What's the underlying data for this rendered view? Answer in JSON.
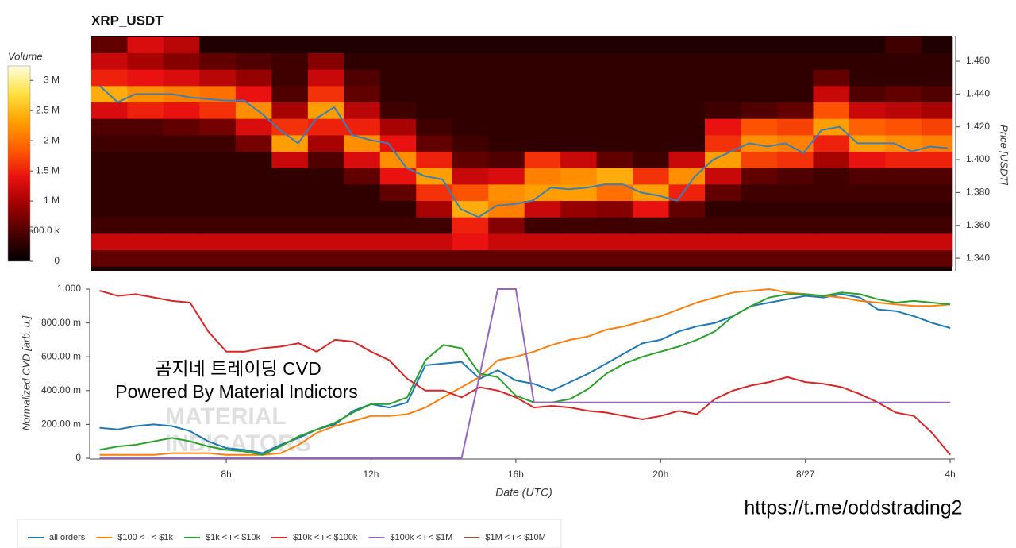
{
  "chart_data": [
    {
      "type": "heatmap",
      "title": "XRP_USDT",
      "y_label": "Price [USDT]",
      "colorbar_label": "Volume",
      "xlim": [
        4.27,
        28.13
      ],
      "ylim": [
        1.3323,
        1.4755
      ],
      "yticks": [
        {
          "value": 1.34,
          "label": "1.340"
        },
        {
          "value": 1.36,
          "label": "1.360"
        },
        {
          "value": 1.38,
          "label": "1.380"
        },
        {
          "value": 1.4,
          "label": "1.400"
        },
        {
          "value": 1.42,
          "label": "1.420"
        },
        {
          "value": 1.44,
          "label": "1.440"
        },
        {
          "value": 1.46,
          "label": "1.460"
        }
      ],
      "x_bins": [
        4.27,
        5.27,
        6.27,
        7.27,
        8.27,
        9.27,
        10.27,
        11.27,
        12.27,
        13.27,
        14.27,
        15.27,
        16.27,
        17.27,
        18.27,
        19.27,
        20.27,
        21.27,
        22.27,
        23.27,
        24.27,
        25.27,
        26.27,
        27.27,
        28.13
      ],
      "y_bins": [
        1.335,
        1.345,
        1.355,
        1.365,
        1.375,
        1.385,
        1.395,
        1.405,
        1.415,
        1.425,
        1.435,
        1.445,
        1.455,
        1.465,
        1.475
      ],
      "z": [
        [
          600000.0,
          600000.0,
          600000.0,
          600000.0,
          600000.0,
          600000.0,
          600000.0,
          600000.0,
          600000.0,
          600000.0,
          600000.0,
          600000.0,
          600000.0,
          600000.0,
          600000.0,
          600000.0,
          600000.0,
          600000.0,
          600000.0,
          600000.0,
          600000.0,
          600000.0,
          600000.0,
          600000.0
        ],
        [
          1200000.0,
          1200000.0,
          1200000.0,
          1200000.0,
          1200000.0,
          1200000.0,
          1200000.0,
          1200000.0,
          1200000.0,
          1200000.0,
          1400000.0,
          1200000.0,
          1200000.0,
          1200000.0,
          1200000.0,
          1200000.0,
          1200000.0,
          1200000.0,
          1200000.0,
          1200000.0,
          1200000.0,
          1200000.0,
          1200000.0,
          1200000.0
        ],
        [
          400000.0,
          400000.0,
          400000.0,
          400000.0,
          400000.0,
          400000.0,
          400000.0,
          400000.0,
          400000.0,
          400000.0,
          1500000.0,
          800000.0,
          400000.0,
          400000.0,
          400000.0,
          400000.0,
          400000.0,
          400000.0,
          400000.0,
          400000.0,
          400000.0,
          400000.0,
          400000.0,
          400000.0
        ],
        [
          300000.0,
          300000.0,
          300000.0,
          300000.0,
          300000.0,
          300000.0,
          300000.0,
          300000.0,
          300000.0,
          1000000.0,
          2400000.0,
          2100000.0,
          1200000.0,
          900000.0,
          800000.0,
          1400000.0,
          600000.0,
          300000.0,
          300000.0,
          300000.0,
          300000.0,
          300000.0,
          300000.0,
          300000.0
        ],
        [
          300000.0,
          300000.0,
          300000.0,
          300000.0,
          300000.0,
          300000.0,
          300000.0,
          300000.0,
          600000.0,
          1600000.0,
          1800000.0,
          2200000.0,
          2300000.0,
          2300000.0,
          2000000.0,
          2300000.0,
          1500000.0,
          600000.0,
          400000.0,
          400000.0,
          400000.0,
          400000.0,
          400000.0,
          400000.0
        ],
        [
          300000.0,
          300000.0,
          300000.0,
          300000.0,
          300000.0,
          300000.0,
          300000.0,
          600000.0,
          1400000.0,
          2300000.0,
          1200000.0,
          1300000.0,
          2100000.0,
          2200000.0,
          2400000.0,
          1600000.0,
          2200000.0,
          1200000.0,
          600000.0,
          500000.0,
          400000.0,
          500000.0,
          500000.0,
          500000.0
        ],
        [
          300000.0,
          300000.0,
          300000.0,
          300000.0,
          300000.0,
          1200000.0,
          500000.0,
          1300000.0,
          2200000.0,
          1500000.0,
          600000.0,
          500000.0,
          1600000.0,
          1200000.0,
          600000.0,
          400000.0,
          1200000.0,
          2300000.0,
          1700000.0,
          1600000.0,
          1000000.0,
          1400000.0,
          1500000.0,
          1500000.0
        ],
        [
          400000.0,
          400000.0,
          400000.0,
          400000.0,
          700000.0,
          2300000.0,
          1000000.0,
          2200000.0,
          1400000.0,
          600000.0,
          400000.0,
          300000.0,
          300000.0,
          300000.0,
          300000.0,
          300000.0,
          300000.0,
          1600000.0,
          2200000.0,
          2100000.0,
          1500000.0,
          2300000.0,
          2200000.0,
          2100000.0
        ],
        [
          500000.0,
          500000.0,
          600000.0,
          700000.0,
          1300000.0,
          1600000.0,
          1500000.0,
          1500000.0,
          1000000.0,
          400000.0,
          300000.0,
          300000.0,
          300000.0,
          300000.0,
          300000.0,
          300000.0,
          300000.0,
          1400000.0,
          1800000.0,
          1700000.0,
          2300000.0,
          1900000.0,
          1800000.0,
          1700000.0
        ],
        [
          1300000.0,
          1500000.0,
          1400000.0,
          1600000.0,
          2200000.0,
          1000000.0,
          2300000.0,
          1100000.0,
          400000.0,
          300000.0,
          300000.0,
          300000.0,
          300000.0,
          300000.0,
          300000.0,
          300000.0,
          300000.0,
          400000.0,
          500000.0,
          600000.0,
          1800000.0,
          1200000.0,
          1100000.0,
          1000000.0
        ],
        [
          2400000.0,
          2200000.0,
          2100000.0,
          2000000.0,
          1400000.0,
          500000.0,
          1600000.0,
          600000.0,
          300000.0,
          300000.0,
          300000.0,
          300000.0,
          300000.0,
          300000.0,
          300000.0,
          300000.0,
          300000.0,
          300000.0,
          300000.0,
          300000.0,
          1200000.0,
          500000.0,
          600000.0,
          500000.0
        ],
        [
          1500000.0,
          1400000.0,
          1300000.0,
          1100000.0,
          900000.0,
          400000.0,
          1200000.0,
          500000.0,
          300000.0,
          300000.0,
          300000.0,
          300000.0,
          300000.0,
          300000.0,
          300000.0,
          300000.0,
          300000.0,
          300000.0,
          300000.0,
          300000.0,
          600000.0,
          300000.0,
          300000.0,
          300000.0
        ],
        [
          1200000.0,
          1000000.0,
          800000.0,
          600000.0,
          500000.0,
          400000.0,
          800000.0,
          300000.0,
          300000.0,
          300000.0,
          300000.0,
          300000.0,
          300000.0,
          300000.0,
          300000.0,
          300000.0,
          300000.0,
          300000.0,
          300000.0,
          300000.0,
          300000.0,
          300000.0,
          300000.0,
          300000.0
        ],
        [
          600000.0,
          1300000.0,
          1100000.0,
          200000.0,
          200000.0,
          200000.0,
          200000.0,
          200000.0,
          200000.0,
          200000.0,
          200000.0,
          200000.0,
          200000.0,
          200000.0,
          200000.0,
          200000.0,
          200000.0,
          200000.0,
          200000.0,
          200000.0,
          200000.0,
          200000.0,
          400000.0,
          200000.0
        ]
      ],
      "zlim": [
        0,
        3240000.0
      ],
      "zticks": [
        0,
        {
          "value": 500000,
          "label": "500.0 k"
        },
        {
          "value": 1000000,
          "label": "1 M"
        },
        {
          "value": 1500000,
          "label": "1.5 M"
        },
        {
          "value": 2000000,
          "label": "2 M"
        },
        {
          "value": 2500000,
          "label": "2.5 M"
        },
        {
          "value": 3000000,
          "label": "3 M"
        }
      ],
      "colormap": [
        "#000000",
        "#4a0000",
        "#9c0000",
        "#e81010",
        "#ff5a00",
        "#ffa000",
        "#ffe040",
        "#ffffe0"
      ],
      "x": [
        4.5,
        5,
        5.5,
        6,
        6.5,
        7,
        7.5,
        8,
        8.5,
        9,
        9.5,
        10,
        10.5,
        11,
        11.5,
        12,
        12.5,
        13,
        13.5,
        14,
        14.5,
        15,
        15.5,
        16,
        16.5,
        17,
        17.5,
        18,
        18.5,
        19,
        19.5,
        20,
        20.5,
        21,
        21.5,
        22,
        22.5,
        23,
        23.5,
        24,
        24.5,
        25,
        25.5,
        26,
        26.5,
        27,
        27.5,
        28
      ],
      "price_line": {
        "color": "#3a7fb8",
        "values": [
          1.445,
          1.435,
          1.44,
          1.44,
          1.44,
          1.438,
          1.437,
          1.436,
          1.436,
          1.428,
          1.418,
          1.41,
          1.425,
          1.432,
          1.415,
          1.412,
          1.41,
          1.395,
          1.39,
          1.388,
          1.37,
          1.365,
          1.372,
          1.373,
          1.375,
          1.383,
          1.382,
          1.383,
          1.385,
          1.385,
          1.38,
          1.378,
          1.375,
          1.39,
          1.4,
          1.405,
          1.41,
          1.408,
          1.41,
          1.404,
          1.418,
          1.42,
          1.41,
          1.41,
          1.41,
          1.405,
          1.408,
          1.407
        ]
      }
    },
    {
      "type": "line",
      "x_label": "Date (UTC)",
      "y_label": "Normalized CVD [arb. u.]",
      "xlim": [
        4.27,
        28.13
      ],
      "xticks": [
        {
          "value": 8,
          "label": "8h"
        },
        {
          "value": 12,
          "label": "12h"
        },
        {
          "value": 16,
          "label": "16h"
        },
        {
          "value": 20,
          "label": "20h"
        },
        {
          "value": 24,
          "label": "8/27"
        },
        {
          "value": 28,
          "label": "4h"
        }
      ],
      "ylim": [
        0,
        1
      ],
      "yticks": [
        0,
        {
          "value": 0.2,
          "label": "200.00 m"
        },
        {
          "value": 0.4,
          "label": "400.00 m"
        },
        {
          "value": 0.6,
          "label": "600.00 m"
        },
        {
          "value": 0.8,
          "label": "800.00 m"
        },
        {
          "value": 1,
          "label": "1.000"
        }
      ],
      "x": [
        4.5,
        5,
        5.5,
        6,
        6.5,
        7,
        7.5,
        8,
        8.5,
        9,
        9.5,
        10,
        10.5,
        11,
        11.5,
        12,
        12.5,
        13,
        13.5,
        14,
        14.5,
        15,
        15.5,
        16,
        16.5,
        17,
        17.5,
        18,
        18.5,
        19,
        19.5,
        20,
        20.5,
        21,
        21.5,
        22,
        22.5,
        23,
        23.5,
        24,
        24.5,
        25,
        25.5,
        26,
        26.5,
        27,
        27.5,
        28
      ],
      "series": [
        {
          "name": "all orders",
          "color": "#1f77b4",
          "values": [
            0.18,
            0.17,
            0.19,
            0.2,
            0.19,
            0.16,
            0.1,
            0.06,
            0.05,
            0.03,
            0.08,
            0.12,
            0.17,
            0.2,
            0.28,
            0.32,
            0.3,
            0.33,
            0.55,
            0.56,
            0.57,
            0.47,
            0.52,
            0.46,
            0.44,
            0.4,
            0.45,
            0.5,
            0.56,
            0.62,
            0.68,
            0.7,
            0.75,
            0.78,
            0.8,
            0.84,
            0.9,
            0.92,
            0.94,
            0.96,
            0.95,
            0.97,
            0.95,
            0.88,
            0.87,
            0.84,
            0.8,
            0.77
          ]
        },
        {
          "name": "$100 < i < $1k",
          "color": "#ff7f0e",
          "values": [
            0.02,
            0.02,
            0.02,
            0.02,
            0.03,
            0.03,
            0.03,
            0.02,
            0.02,
            0.02,
            0.03,
            0.08,
            0.15,
            0.19,
            0.22,
            0.25,
            0.25,
            0.26,
            0.3,
            0.36,
            0.42,
            0.48,
            0.58,
            0.6,
            0.63,
            0.67,
            0.7,
            0.72,
            0.76,
            0.78,
            0.81,
            0.84,
            0.88,
            0.92,
            0.95,
            0.98,
            0.99,
            1,
            0.98,
            0.97,
            0.96,
            0.95,
            0.93,
            0.92,
            0.91,
            0.9,
            0.9,
            0.91
          ]
        },
        {
          "name": "$1k < i < $10k",
          "color": "#2ca02c",
          "values": [
            0.05,
            0.07,
            0.08,
            0.1,
            0.12,
            0.1,
            0.07,
            0.05,
            0.04,
            0.02,
            0.07,
            0.13,
            0.17,
            0.21,
            0.27,
            0.32,
            0.32,
            0.36,
            0.58,
            0.67,
            0.65,
            0.5,
            0.48,
            0.37,
            0.33,
            0.33,
            0.35,
            0.41,
            0.5,
            0.56,
            0.6,
            0.63,
            0.66,
            0.7,
            0.75,
            0.84,
            0.9,
            0.95,
            0.97,
            0.97,
            0.96,
            0.98,
            0.97,
            0.94,
            0.92,
            0.93,
            0.92,
            0.91
          ]
        },
        {
          "name": "$10k < i < $100k",
          "color": "#d62728",
          "values": [
            0.99,
            0.96,
            0.97,
            0.95,
            0.93,
            0.92,
            0.75,
            0.63,
            0.63,
            0.65,
            0.66,
            0.68,
            0.63,
            0.7,
            0.69,
            0.63,
            0.58,
            0.47,
            0.4,
            0.4,
            0.36,
            0.42,
            0.4,
            0.36,
            0.3,
            0.31,
            0.3,
            0.28,
            0.27,
            0.25,
            0.23,
            0.25,
            0.28,
            0.26,
            0.35,
            0.4,
            0.43,
            0.45,
            0.48,
            0.45,
            0.44,
            0.42,
            0.38,
            0.33,
            0.27,
            0.25,
            0.15,
            0.02
          ]
        },
        {
          "name": "$100k < i < $1M",
          "color": "#9467bd",
          "values": [
            0,
            0,
            0,
            0,
            0,
            0,
            0,
            0,
            0,
            0,
            0,
            0,
            0,
            0,
            0,
            0,
            0,
            0,
            0,
            0,
            0,
            0.49,
            1,
            1,
            0.33,
            0.33,
            0.33,
            0.33,
            0.33,
            0.33,
            0.33,
            0.33,
            0.33,
            0.33,
            0.33,
            0.33,
            0.33,
            0.33,
            0.33,
            0.33,
            0.33,
            0.33,
            0.33,
            0.33,
            0.33,
            0.33,
            0.33,
            0.33
          ]
        },
        {
          "name": "$1M < i < $10M",
          "color": "#8c564b",
          "values": [
            null,
            null,
            null,
            null,
            null,
            null,
            null,
            null,
            null,
            null,
            null,
            null,
            null,
            null,
            null,
            null,
            null,
            null,
            null,
            null,
            null,
            null,
            null,
            null,
            null,
            null,
            null,
            null,
            null,
            null,
            null,
            null,
            null,
            null,
            null,
            null,
            null,
            null,
            null,
            null,
            null,
            null,
            null,
            null,
            null,
            null,
            null,
            null
          ]
        }
      ],
      "annotations": [
        "곰지네 트레이딩 CVD",
        "Powered By Material Indictors",
        "MATERIAL",
        "INDICATORS",
        "https://t.me/oddstrading2"
      ]
    }
  ]
}
